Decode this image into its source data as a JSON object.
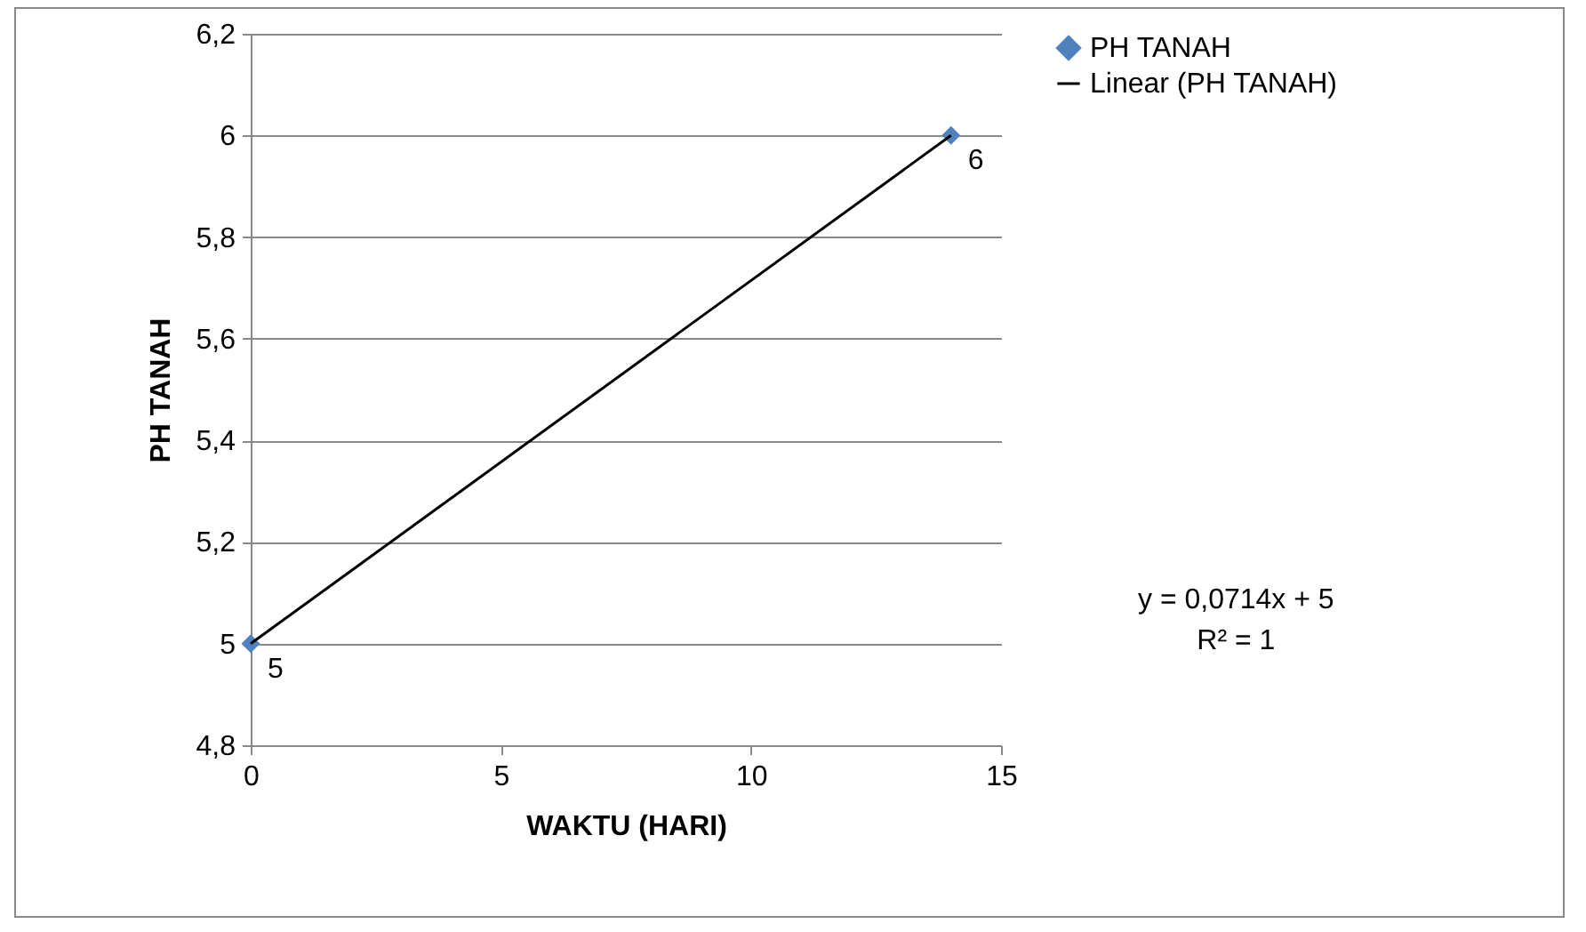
{
  "chart_data": {
    "type": "scatter",
    "xlabel": "WAKTU (HARI)",
    "ylabel": "PH TANAH",
    "x": [
      0,
      14
    ],
    "series": [
      {
        "name": "PH TANAH",
        "color": "#4f81bd",
        "values": [
          5,
          6
        ],
        "marker": "diamond",
        "data_labels": true
      },
      {
        "name": "Linear (PH TANAH)",
        "type": "line",
        "color": "#000000",
        "x": [
          0,
          14
        ],
        "values": [
          5,
          6
        ]
      }
    ],
    "annotations": [
      "y = 0,0714x + 5",
      "R² = 1"
    ],
    "xlim": [
      0,
      15
    ],
    "xticks": [
      0,
      5,
      10,
      15
    ],
    "ylim": [
      4.8,
      6.2
    ],
    "yticks": [
      {
        "value": 4.8,
        "label": "4,8"
      },
      {
        "value": 5,
        "label": "5"
      },
      {
        "value": 5.2,
        "label": "5,2"
      },
      {
        "value": 5.4,
        "label": "5,4"
      },
      {
        "value": 5.6,
        "label": "5,6"
      },
      {
        "value": 5.8,
        "label": "5,8"
      },
      {
        "value": 6,
        "label": "6"
      },
      {
        "value": 6.2,
        "label": "6,2"
      }
    ],
    "grid": "y",
    "legend": "right"
  }
}
